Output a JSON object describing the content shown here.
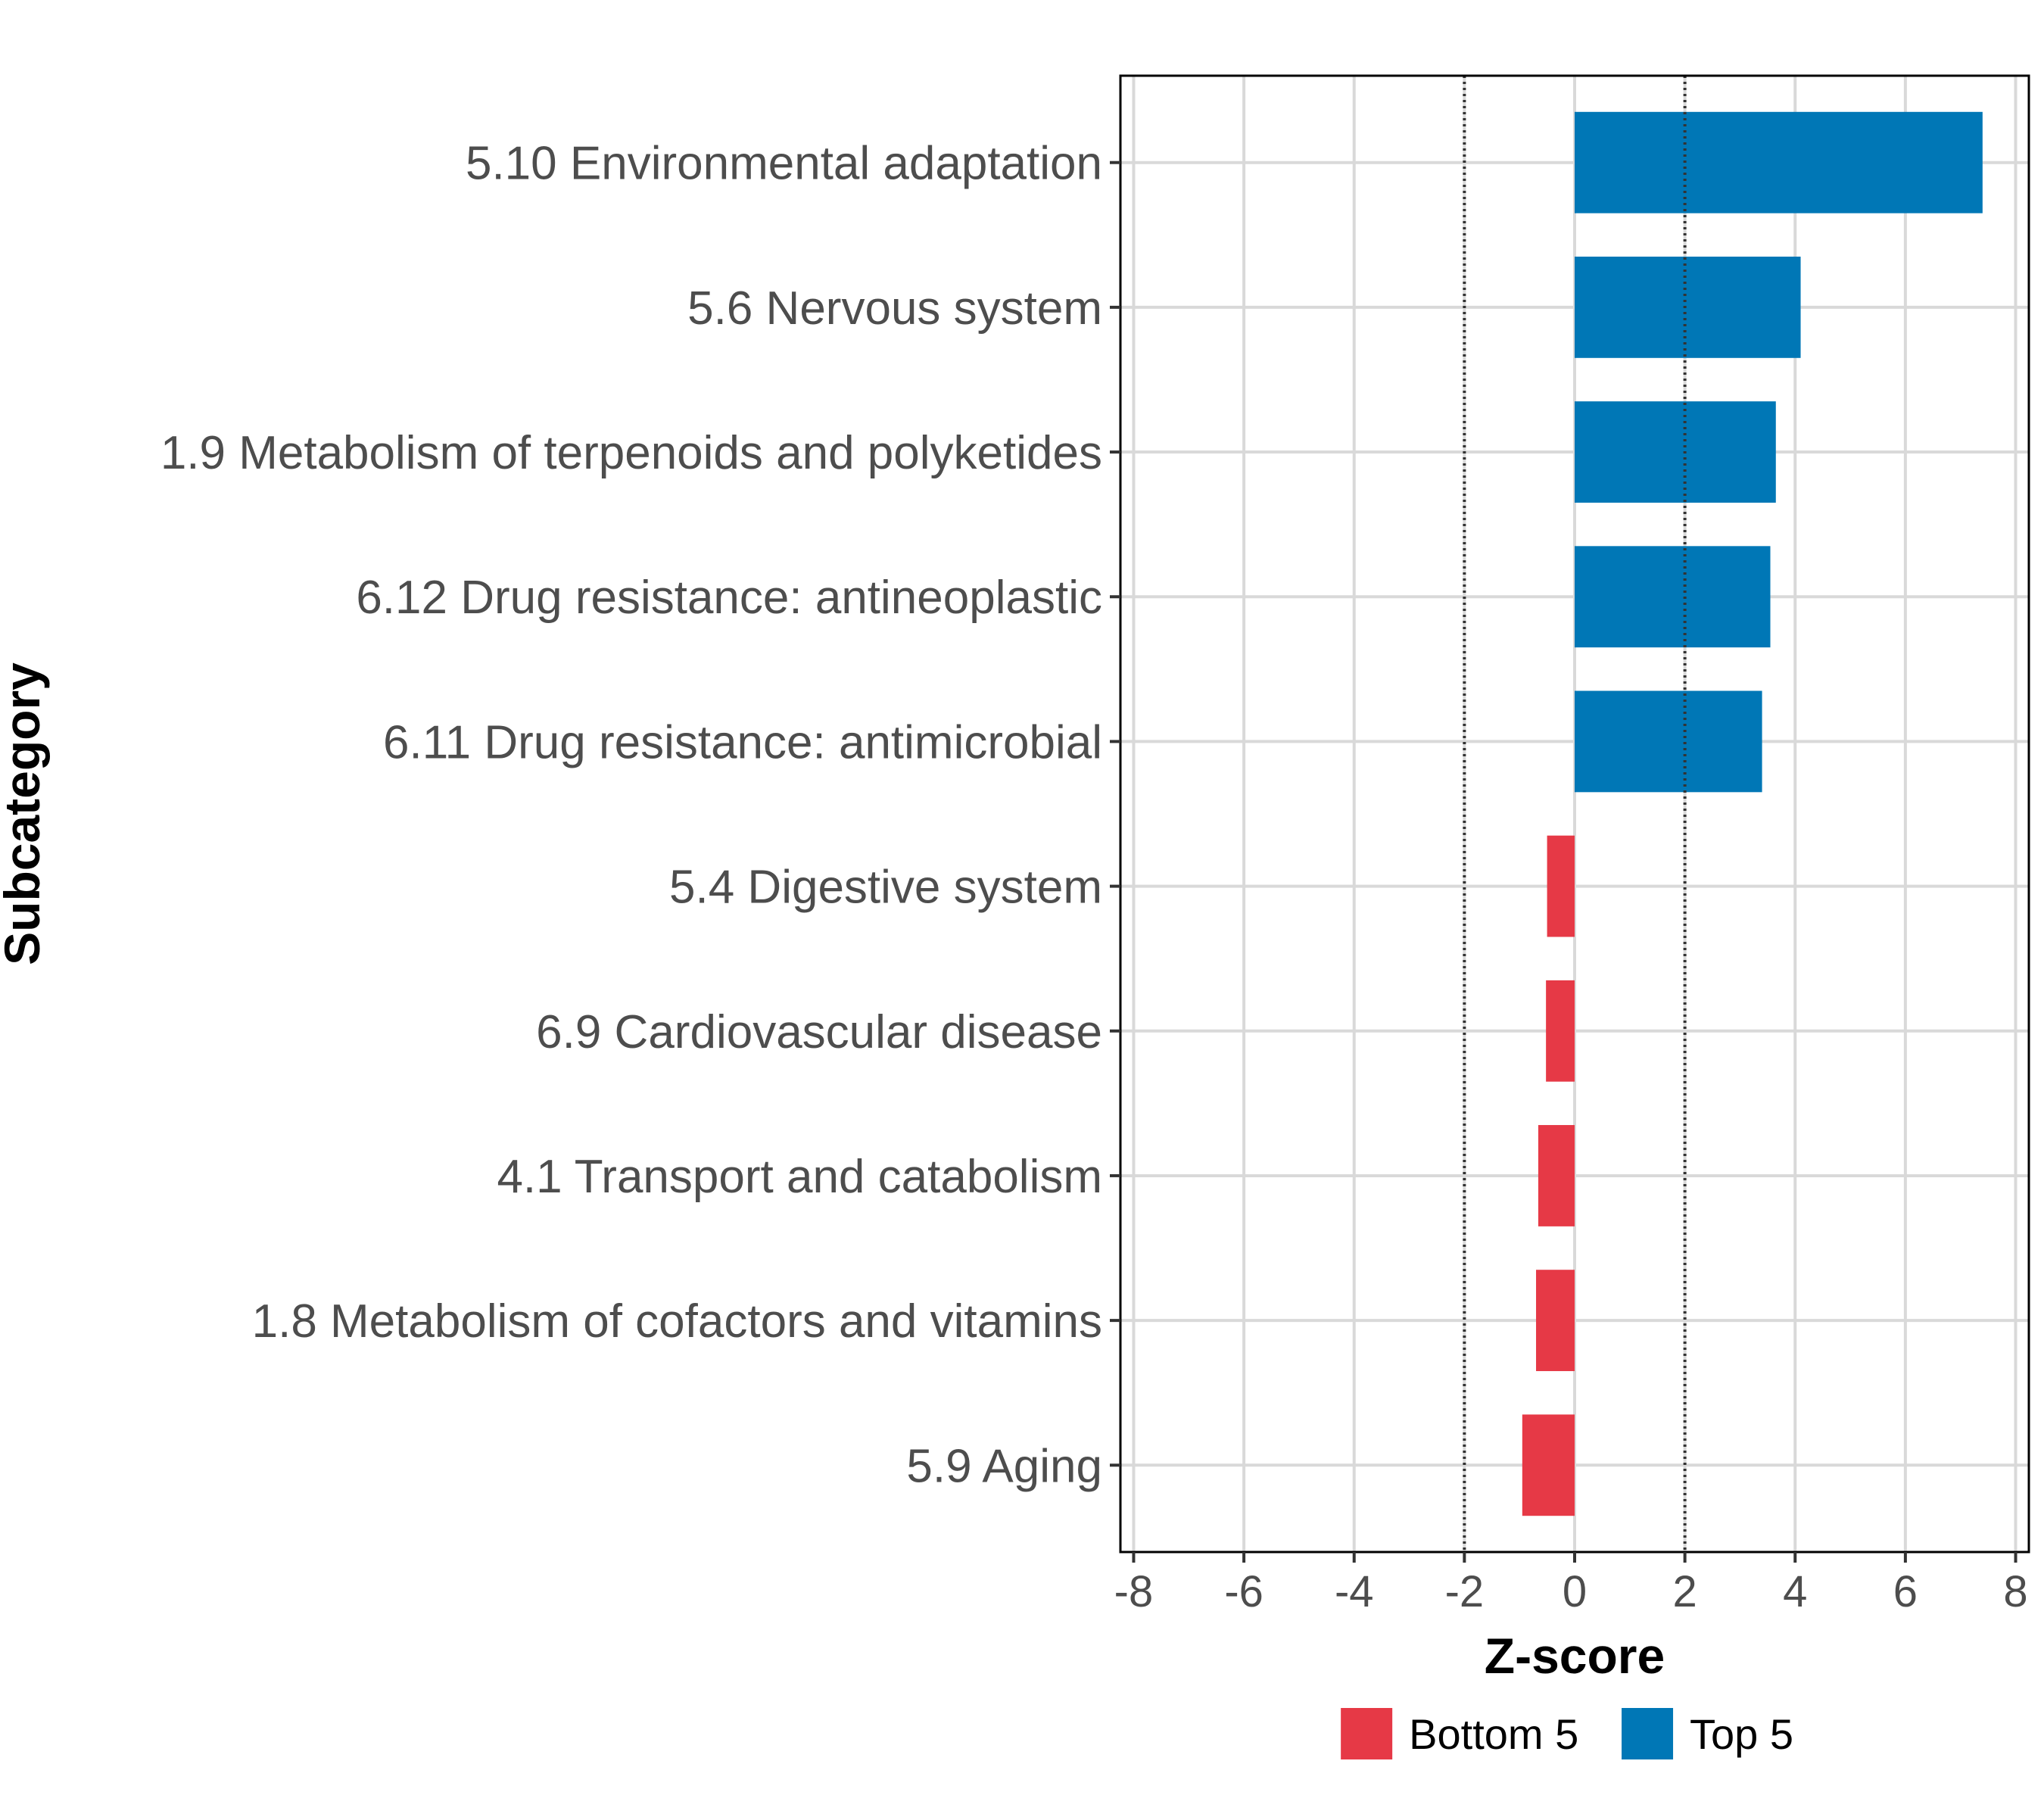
{
  "chart_data": {
    "type": "bar",
    "orientation": "horizontal",
    "title": "",
    "xlabel": "Z-score",
    "ylabel": "Subcategory",
    "xlim": [
      -8,
      8
    ],
    "xticks": [
      "-8",
      "-6",
      "-4",
      "-2",
      "0",
      "2",
      "4",
      "6",
      "8"
    ],
    "reference_lines": [
      -2,
      2
    ],
    "grid": true,
    "legend_position": "bottom",
    "categories": [
      "5.10 Environmental adaptation",
      "5.6 Nervous system",
      "1.9 Metabolism of terpenoids and polyketides",
      "6.12 Drug resistance: antineoplastic",
      "6.11 Drug resistance: antimicrobial",
      "5.4 Digestive system",
      "6.9 Cardiovascular disease",
      "4.1 Transport and catabolism",
      "1.8 Metabolism of cofactors and vitamins",
      "5.9 Aging"
    ],
    "values": [
      7.4,
      4.1,
      3.65,
      3.55,
      3.4,
      -0.5,
      -0.52,
      -0.66,
      -0.7,
      -0.95
    ],
    "groups": [
      "Top 5",
      "Top 5",
      "Top 5",
      "Top 5",
      "Top 5",
      "Bottom 5",
      "Bottom 5",
      "Bottom 5",
      "Bottom 5",
      "Bottom 5"
    ],
    "legend": [
      {
        "name": "Bottom 5",
        "color": "#e63946"
      },
      {
        "name": "Top 5",
        "color": "#0077b6"
      }
    ]
  }
}
